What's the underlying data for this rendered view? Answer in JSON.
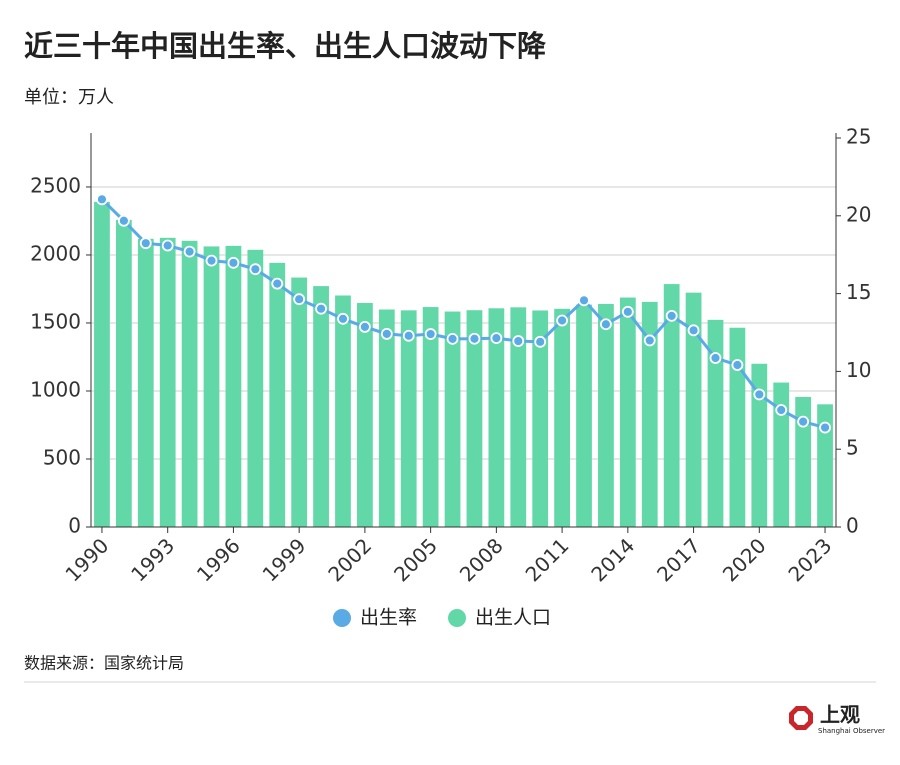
{
  "chart_data": {
    "type": "bar-line",
    "title": "近三十年中国出生率、出生人口波动下降",
    "subtitle": "单位：万人",
    "source": "数据来源：国家统计局",
    "logo_text": "上观",
    "logo_subtext": "Shanghai Observer",
    "categories": [
      "1990",
      null,
      null,
      "1993",
      null,
      null,
      "1996",
      null,
      null,
      "1999",
      null,
      null,
      "2002",
      null,
      null,
      "2005",
      null,
      null,
      "2008",
      null,
      null,
      "2011",
      null,
      null,
      "2014",
      null,
      null,
      "2017",
      null,
      null,
      "2020",
      null,
      null,
      "2023"
    ],
    "series": [
      {
        "name": "出生率",
        "color": "#5aaae6",
        "axis": "y2",
        "kind": "line",
        "values": [
          21.06,
          19.68,
          18.24,
          18.09,
          17.7,
          17.12,
          16.98,
          16.57,
          15.64,
          14.64,
          14.03,
          13.38,
          12.86,
          12.41,
          12.29,
          12.4,
          12.09,
          12.1,
          12.14,
          11.95,
          11.9,
          13.27,
          14.57,
          13.03,
          13.83,
          11.99,
          13.57,
          12.64,
          10.86,
          10.41,
          8.52,
          7.52,
          6.77,
          6.39
        ]
      },
      {
        "name": "出生人口",
        "color": "#62d8a9",
        "kind": "bar",
        "values": [
          2391,
          2258,
          2119,
          2126,
          2104,
          2063,
          2067,
          2038,
          1942,
          1834,
          1771,
          1702,
          1647,
          1599,
          1593,
          1617,
          1584,
          1594,
          1608,
          1615,
          1592,
          1604,
          1635,
          1640,
          1687,
          1655,
          1786,
          1723,
          1523,
          1465,
          1200,
          1062,
          956,
          902
        ]
      }
    ],
    "ylim": [
      0,
      2860
    ],
    "yticks": [
      0,
      500,
      1000,
      1500,
      2000,
      2500
    ],
    "y2lim": [
      0,
      25
    ],
    "y2ticks": [
      0,
      5,
      10,
      15,
      20,
      25
    ],
    "grid": true
  }
}
